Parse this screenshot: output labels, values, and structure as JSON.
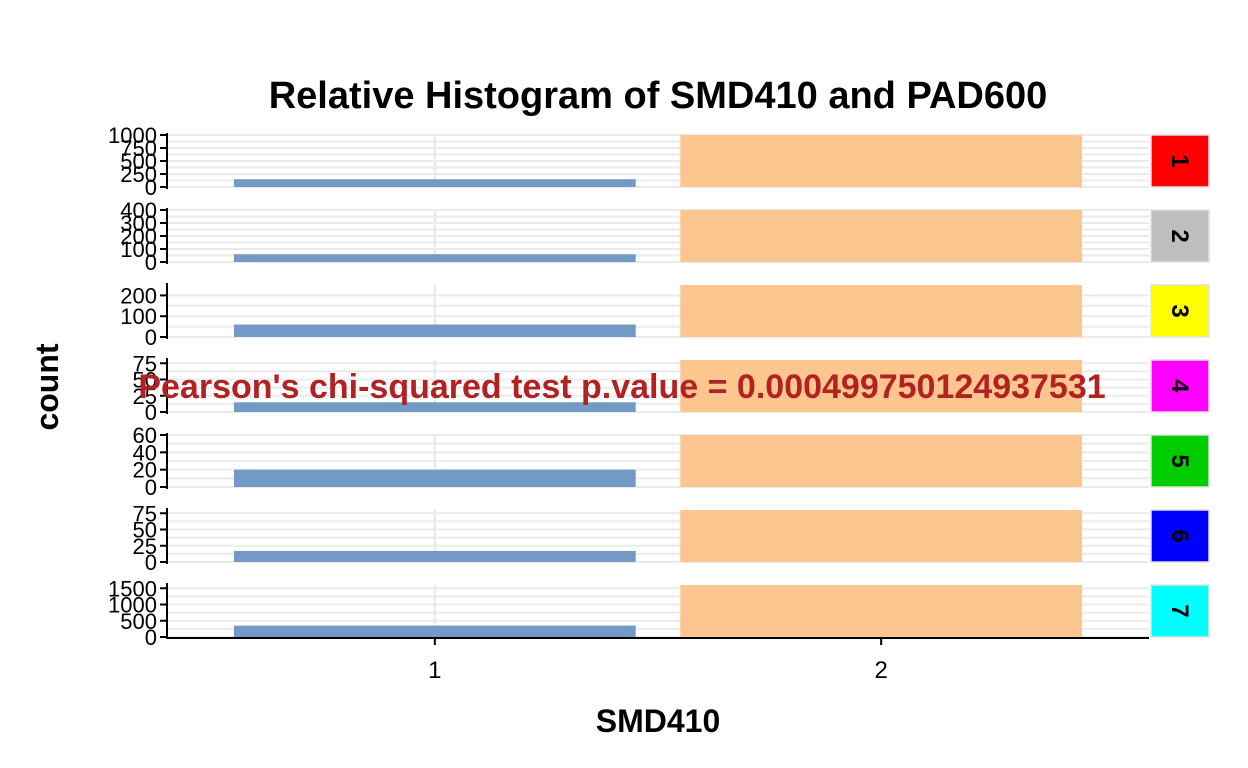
{
  "chart_data": {
    "type": "bar",
    "title": "Relative Histogram of SMD410 and PAD600",
    "xlabel": "SMD410",
    "ylabel": "count",
    "x_ticks": [
      "1",
      "2"
    ],
    "annotation": "Pearson's chi-squared test p.value = 0.000499750124937531",
    "grid": true,
    "series_colors": {
      "SMD410=1": "#7399C6",
      "SMD410=2": "#FDC68E"
    },
    "panels": [
      {
        "label": "1",
        "strip_color": "#FF0000",
        "ylim": [
          0,
          1000
        ],
        "ticks": [
          0,
          250,
          500,
          750,
          1000
        ],
        "tick_labels": [
          "0",
          "250",
          "500",
          "750",
          "1000"
        ],
        "values": [
          150,
          1000
        ]
      },
      {
        "label": "2",
        "strip_color": "#BEBEBE",
        "ylim": [
          0,
          400
        ],
        "ticks": [
          0,
          100,
          200,
          300,
          400
        ],
        "tick_labels": [
          "0",
          "100",
          "200",
          "300",
          "400"
        ],
        "values": [
          60,
          400
        ]
      },
      {
        "label": "3",
        "strip_color": "#FFFF00",
        "ylim": [
          0,
          250
        ],
        "ticks": [
          0,
          100,
          200
        ],
        "tick_labels": [
          "0",
          "100",
          "200"
        ],
        "values": [
          60,
          250
        ]
      },
      {
        "label": "4",
        "strip_color": "#FF00FF",
        "ylim": [
          0,
          80
        ],
        "ticks": [
          0,
          25,
          50,
          75
        ],
        "tick_labels": [
          "0",
          "25",
          "50",
          "75"
        ],
        "values": [
          15,
          80
        ]
      },
      {
        "label": "5",
        "strip_color": "#00CD00",
        "ylim": [
          0,
          60
        ],
        "ticks": [
          0,
          20,
          40,
          60
        ],
        "tick_labels": [
          "0",
          "20",
          "40",
          "60"
        ],
        "values": [
          20,
          60
        ]
      },
      {
        "label": "6",
        "strip_color": "#0000FF",
        "ylim": [
          0,
          80
        ],
        "ticks": [
          0,
          25,
          50,
          75
        ],
        "tick_labels": [
          "0",
          "25",
          "50",
          "75"
        ],
        "values": [
          17,
          80
        ]
      },
      {
        "label": "7",
        "strip_color": "#00FFFF",
        "ylim": [
          0,
          1600
        ],
        "ticks": [
          0,
          500,
          1000,
          1500
        ],
        "tick_labels": [
          "0",
          "500",
          "1000",
          "1500"
        ],
        "values": [
          350,
          1600
        ]
      }
    ]
  }
}
